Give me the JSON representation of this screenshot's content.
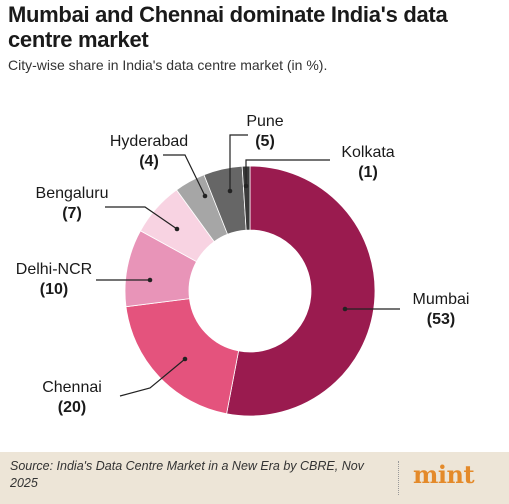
{
  "header": {
    "title": "Mumbai and Chennai dominate India's data centre market",
    "subtitle": "City-wise share in India's data centre market (in %)."
  },
  "footer": {
    "source": "Source: India's Data Centre Market in a New Era by CBRE, Nov 2025",
    "logo_text": "mint"
  },
  "colors": {
    "background": "#ffffff",
    "footer_band": "#ede5d7",
    "logo": "#e48a2a"
  },
  "chart_data": {
    "type": "pie",
    "variant": "donut",
    "title": "Mumbai and Chennai dominate India's data centre market",
    "subtitle": "City-wise share in India's data centre market (in %).",
    "unit": "%",
    "start": "12 o'clock",
    "direction": "clockwise",
    "legend": "none",
    "slices": [
      {
        "label": "Mumbai",
        "value": 53,
        "display": "(53)",
        "color": "#9a1b4f"
      },
      {
        "label": "Chennai",
        "value": 20,
        "display": "(20)",
        "color": "#e4537d"
      },
      {
        "label": "Delhi-NCR",
        "value": 10,
        "display": "(10)",
        "color": "#e894b8"
      },
      {
        "label": "Bengaluru",
        "value": 7,
        "display": "(7)",
        "color": "#f8d3e2"
      },
      {
        "label": "Hyderabad",
        "value": 4,
        "display": "(4)",
        "color": "#a6a6a6"
      },
      {
        "label": "Pune",
        "value": 5,
        "display": "(5)",
        "color": "#666666"
      },
      {
        "label": "Kolkata",
        "value": 1,
        "display": "(1)",
        "color": "#3a3a3a"
      }
    ]
  }
}
